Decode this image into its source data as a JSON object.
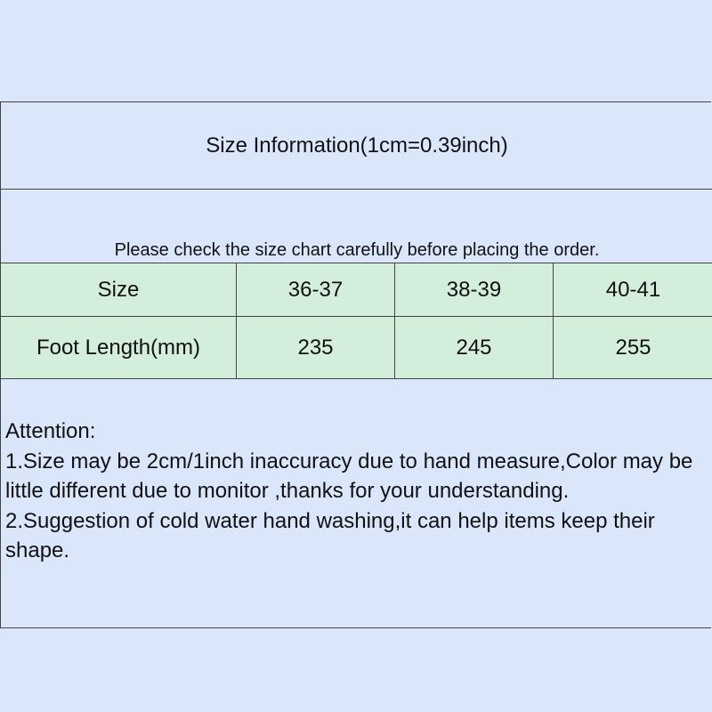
{
  "title": "Size Information(1cm=0.39inch)",
  "subtitle": "Please check the size chart carefully before placing the order.",
  "table": {
    "header": [
      "Size",
      "36-37",
      "38-39",
      "40-41"
    ],
    "row": [
      "Foot Length(mm)",
      "235",
      "245",
      "255"
    ]
  },
  "attention": {
    "heading": "Attention:",
    "line1": "1.Size may be 2cm/1inch inaccuracy due to hand measure,Color may be little different due to monitor ,thanks for your understanding.",
    "line2": "2.Suggestion of cold water hand washing,it can help items keep their shape."
  },
  "colors": {
    "background": "#dae7fb",
    "table_row": "#d3efdc"
  }
}
